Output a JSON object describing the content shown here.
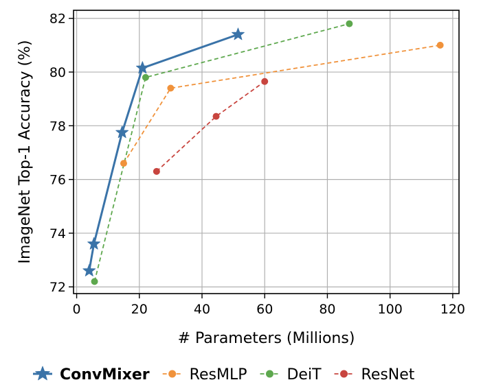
{
  "chart_data": {
    "type": "line",
    "xlabel": "# Parameters (Millions)",
    "ylabel": "ImageNet Top-1 Accuracy (%)",
    "xlim": [
      -1,
      122
    ],
    "ylim": [
      71.75,
      82.3
    ],
    "xticks": [
      0,
      20,
      40,
      60,
      80,
      100,
      120
    ],
    "yticks": [
      72,
      74,
      76,
      78,
      80,
      82
    ],
    "grid": true,
    "legend_position": "bottom",
    "series": [
      {
        "name": "ConvMixer",
        "color": "#3a73a8",
        "marker": "star",
        "linestyle": "solid",
        "bold_label": true,
        "points": [
          [
            4.0,
            72.6
          ],
          [
            5.5,
            73.6
          ],
          [
            14.5,
            77.75
          ],
          [
            21.0,
            80.15
          ],
          [
            51.5,
            81.4
          ]
        ]
      },
      {
        "name": "ResMLP",
        "color": "#f0923b",
        "marker": "circle",
        "linestyle": "dashed",
        "points": [
          [
            15.0,
            76.6
          ],
          [
            30.0,
            79.4
          ],
          [
            116.0,
            81.0
          ]
        ]
      },
      {
        "name": "DeiT",
        "color": "#5ea84e",
        "marker": "circle",
        "linestyle": "dashed",
        "points": [
          [
            5.7,
            72.2
          ],
          [
            22.0,
            79.8
          ],
          [
            87.0,
            81.8
          ]
        ]
      },
      {
        "name": "ResNet",
        "color": "#c8453f",
        "marker": "circle",
        "linestyle": "dashed",
        "points": [
          [
            25.5,
            76.3
          ],
          [
            44.5,
            78.35
          ],
          [
            60.0,
            79.65
          ]
        ]
      }
    ]
  }
}
